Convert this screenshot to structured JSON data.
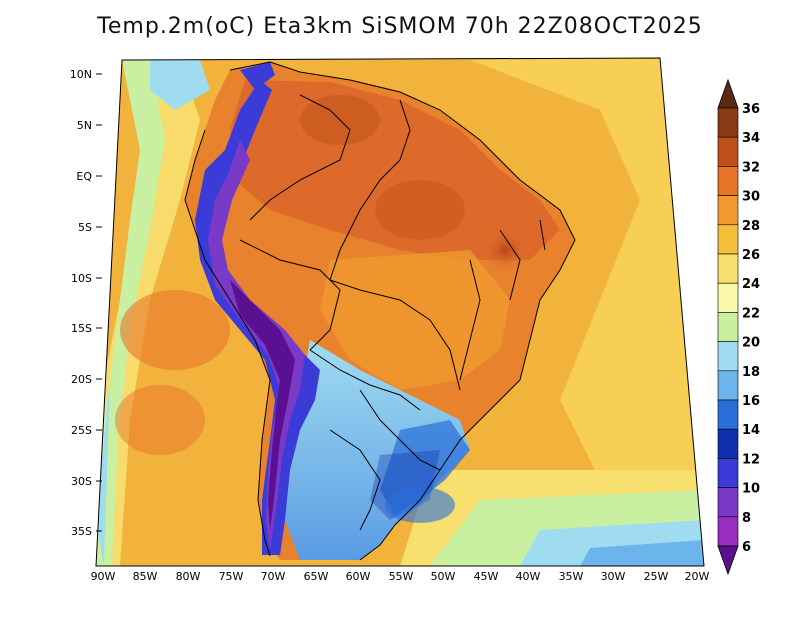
{
  "title": "Temp.2m(oC) Eta3km SiSMOM 70h 22Z08OCT2025",
  "y_axis_labels": [
    "10N",
    "5N",
    "EQ",
    "5S",
    "10S",
    "15S",
    "20S",
    "25S",
    "30S",
    "35S"
  ],
  "x_axis_labels": [
    "90W",
    "85W",
    "80W",
    "75W",
    "70W",
    "65W",
    "60W",
    "55W",
    "50W",
    "45W",
    "40W",
    "35W",
    "30W",
    "25W",
    "20W"
  ],
  "colorbar": {
    "label_values": [
      "36",
      "34",
      "32",
      "30",
      "28",
      "26",
      "24",
      "22",
      "20",
      "18",
      "16",
      "14",
      "12",
      "10",
      "8",
      "6"
    ],
    "colors": [
      "#5a2a12",
      "#8a3a14",
      "#c0501a",
      "#e8742a",
      "#f09a30",
      "#f5bf3a",
      "#f7e070",
      "#f8f8a8",
      "#c8f0a0",
      "#a0dcf0",
      "#6cb4ec",
      "#2a6ed8",
      "#1030b0",
      "#3b3bd8",
      "#7a3ac8",
      "#9a2cc0",
      "#5a1090"
    ]
  },
  "fields": {
    "ocean_color": "#f2b33c",
    "land_hot_color": "#e8822c",
    "andes_color": "#6f3bc8",
    "south_cool_color": "#7fb8ee",
    "coast_cool_color": "#c6eaa4"
  }
}
